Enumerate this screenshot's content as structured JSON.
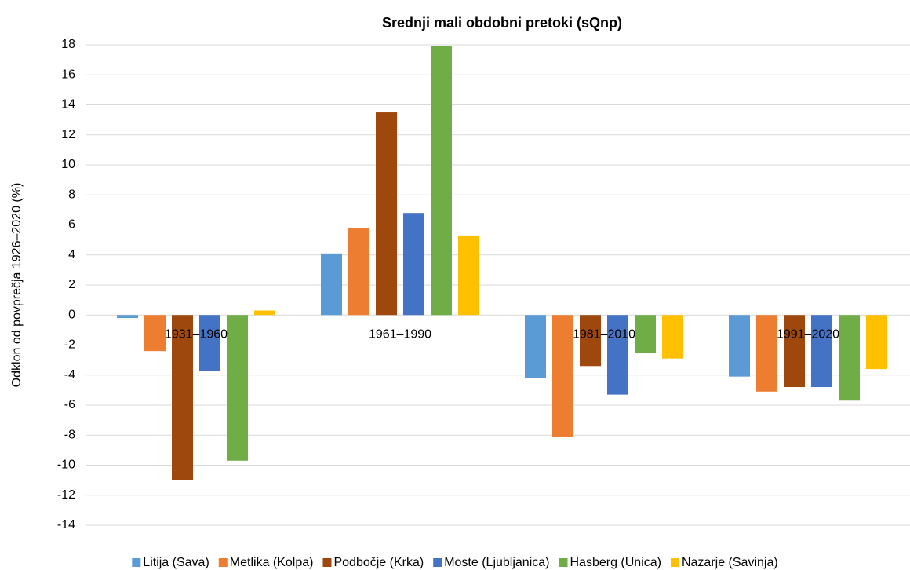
{
  "chart_data": {
    "type": "bar",
    "title": "Srednji mali obdobni pretoki (sQnp)",
    "y_label": "Odklon od povprečja 1926–2020 (%)",
    "categories": [
      "1931–1960",
      "1961–1990",
      "1981–2010",
      "1991–2020"
    ],
    "series": [
      {
        "name": "Litija (Sava)",
        "color": "#5b9bd5",
        "values": [
          -0.2,
          4.1,
          -4.2,
          -4.1
        ]
      },
      {
        "name": "Metlika (Kolpa)",
        "color": "#ed7d31",
        "values": [
          -2.4,
          5.8,
          -8.1,
          -5.1
        ]
      },
      {
        "name": "Podbočje (Krka)",
        "color": "#9e480e",
        "values": [
          -11,
          13.5,
          -3.4,
          -4.8
        ]
      },
      {
        "name": "Moste (Ljubljanica)",
        "color": "#4472c4",
        "values": [
          -3.7,
          6.8,
          -5.3,
          -4.8
        ]
      },
      {
        "name": "Hasberg (Unica)",
        "color": "#70ad47",
        "values": [
          -9.7,
          17.9,
          -2.5,
          -5.7
        ]
      },
      {
        "name": "Nazarje (Savinja)",
        "color": "#ffc000",
        "values": [
          0.3,
          5.3,
          -2.9,
          -3.6
        ]
      }
    ],
    "ylim": [
      -14,
      18
    ],
    "yticks": [
      -14,
      -12,
      -10,
      -8,
      -6,
      -4,
      -2,
      0,
      2,
      4,
      6,
      8,
      10,
      12,
      14,
      16,
      18
    ],
    "grid": true
  }
}
